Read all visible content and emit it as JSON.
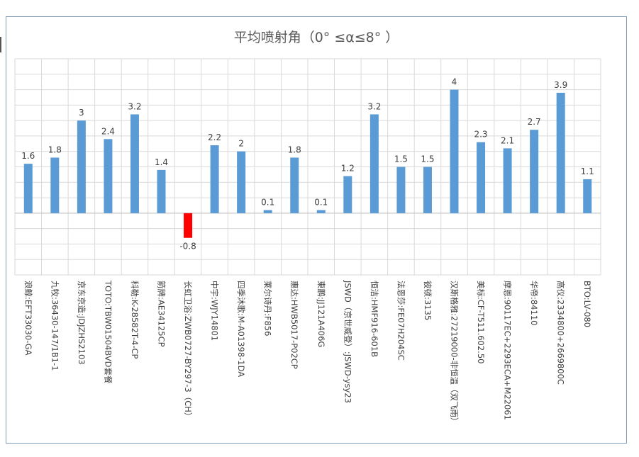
{
  "chart_data": {
    "type": "bar",
    "title": "平均喷射角（0° ≤α≤8° ）",
    "categories": [
      "浪鲸:EFT33030-GA",
      "九牧:36430-147/1B1-1",
      "京东京造:JDJZHS2103",
      "TOTO:TBW01504BVD套餐",
      "科勒:K-28582T-4-CP",
      "箭牌:AE34125CP",
      "长虹卫浴:ZWB0727-BY297-3（CH）",
      "中宇:WJY14801",
      "四季沐歌:M-A01398-1DA",
      "莱尔诗丹:F856",
      "惠达:HWB5017-P02CP",
      "東鹏:JJ121A406G",
      "JSWD（京世威登）:JSWD-ysy23",
      "恒洁:HMF916-601B",
      "法恩莎:FE07H204SC",
      "彼顿:3135",
      "汉斯格雅:27219000-非恒温（双飞雨）",
      "美标:CF-T511.602.50",
      "摩恩:90117EC+2293ECA+M22061",
      "华帝:84110",
      "高仪:2334800+2669800C",
      "BTO:LV-080"
    ],
    "values": [
      1.6,
      1.8,
      3,
      2.4,
      3.2,
      1.4,
      -0.8,
      2.2,
      2,
      0.1,
      1.8,
      0.1,
      1.2,
      3.2,
      1.5,
      1.5,
      4,
      2.3,
      2.1,
      2.7,
      3.9,
      1.1
    ],
    "value_labels": [
      "1.6",
      "1.8",
      "3",
      "2.4",
      "3.2",
      "1.4",
      "-0.8",
      "2.2",
      "2",
      "0.1",
      "1.8",
      "0.1",
      "1.2",
      "3.2",
      "1.5",
      "1.5",
      "4",
      "2.3",
      "2.1",
      "2.7",
      "3.9",
      "1.1"
    ],
    "ylim": [
      -2,
      5
    ],
    "grid": true,
    "legend": "none",
    "colors": {
      "positive": "#5b9bd5",
      "negative": "#ff0000",
      "grid": "#d9d9d9",
      "text": "#404040",
      "title": "#595959"
    }
  }
}
